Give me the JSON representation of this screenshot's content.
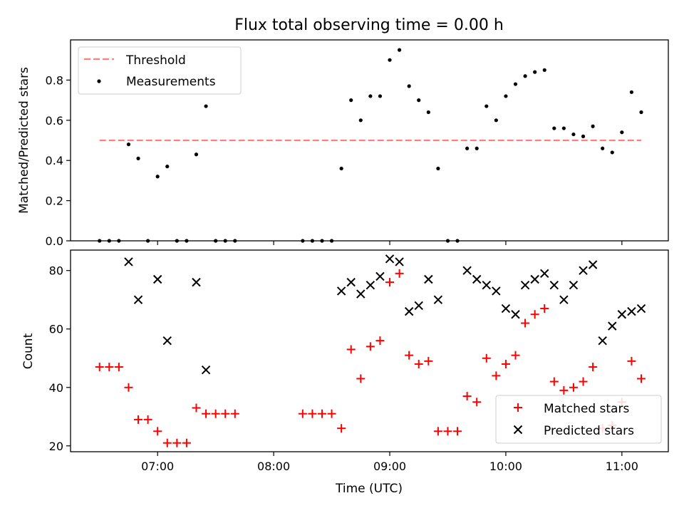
{
  "title": "Flux total observing time = 0.00 h",
  "chart_data": [
    {
      "type": "scatter",
      "panel": "top",
      "ylabel": "Matched/Predicted stars",
      "xlim": [
        "06:15",
        "11:24"
      ],
      "ylim": [
        0,
        1.0
      ],
      "yticks": [
        0.0,
        0.2,
        0.4,
        0.6,
        0.8
      ],
      "ytick_labels": [
        "0.0",
        "0.2",
        "0.4",
        "0.6",
        "0.8"
      ],
      "legend": {
        "location": "top-left",
        "entries": [
          "Threshold",
          "Measurements"
        ]
      },
      "threshold": {
        "name": "Threshold",
        "y": 0.5,
        "x_range": [
          "06:30",
          "11:10"
        ],
        "color": "#ff7f7f",
        "style": "dashed"
      },
      "series": [
        {
          "name": "Measurements",
          "color": "#000000",
          "points": [
            [
              "06:30",
              0.0
            ],
            [
              "06:35",
              0.0
            ],
            [
              "06:40",
              0.0
            ],
            [
              "06:45",
              0.48
            ],
            [
              "06:50",
              0.41
            ],
            [
              "06:55",
              0.0
            ],
            [
              "07:00",
              0.32
            ],
            [
              "07:05",
              0.37
            ],
            [
              "07:10",
              0.0
            ],
            [
              "07:15",
              0.0
            ],
            [
              "07:20",
              0.43
            ],
            [
              "07:25",
              0.67
            ],
            [
              "07:30",
              0.0
            ],
            [
              "07:35",
              0.0
            ],
            [
              "07:40",
              0.0
            ],
            [
              "08:15",
              0.0
            ],
            [
              "08:20",
              0.0
            ],
            [
              "08:25",
              0.0
            ],
            [
              "08:30",
              0.0
            ],
            [
              "08:35",
              0.36
            ],
            [
              "08:40",
              0.7
            ],
            [
              "08:45",
              0.6
            ],
            [
              "08:50",
              0.72
            ],
            [
              "08:55",
              0.72
            ],
            [
              "09:00",
              0.9
            ],
            [
              "09:05",
              0.95
            ],
            [
              "09:10",
              0.77
            ],
            [
              "09:15",
              0.7
            ],
            [
              "09:20",
              0.64
            ],
            [
              "09:25",
              0.36
            ],
            [
              "09:30",
              0.0
            ],
            [
              "09:35",
              0.0
            ],
            [
              "09:40",
              0.46
            ],
            [
              "09:45",
              0.46
            ],
            [
              "09:50",
              0.67
            ],
            [
              "09:55",
              0.6
            ],
            [
              "10:00",
              0.72
            ],
            [
              "10:05",
              0.78
            ],
            [
              "10:10",
              0.82
            ],
            [
              "10:15",
              0.84
            ],
            [
              "10:20",
              0.85
            ],
            [
              "10:25",
              0.56
            ],
            [
              "10:30",
              0.56
            ],
            [
              "10:35",
              0.53
            ],
            [
              "10:40",
              0.52
            ],
            [
              "10:45",
              0.57
            ],
            [
              "10:50",
              0.46
            ],
            [
              "10:55",
              0.44
            ],
            [
              "11:00",
              0.54
            ],
            [
              "11:05",
              0.74
            ],
            [
              "11:10",
              0.64
            ]
          ]
        }
      ]
    },
    {
      "type": "scatter",
      "panel": "bottom",
      "xlabel": "Time (UTC)",
      "ylabel": "Count",
      "xlim": [
        "06:15",
        "11:24"
      ],
      "ylim": [
        18,
        87
      ],
      "xticks": [
        "07:00",
        "08:00",
        "09:00",
        "10:00",
        "11:00"
      ],
      "yticks": [
        20,
        40,
        60,
        80
      ],
      "ytick_labels": [
        "20",
        "40",
        "60",
        "80"
      ],
      "legend": {
        "location": "bottom-right",
        "entries": [
          "Matched stars",
          "Predicted stars"
        ]
      },
      "series": [
        {
          "name": "Matched stars",
          "marker": "plus",
          "color": "#ff0000",
          "points": [
            [
              "06:30",
              47
            ],
            [
              "06:35",
              47
            ],
            [
              "06:40",
              47
            ],
            [
              "06:45",
              40
            ],
            [
              "06:50",
              29
            ],
            [
              "06:55",
              29
            ],
            [
              "07:00",
              25
            ],
            [
              "07:05",
              21
            ],
            [
              "07:10",
              21
            ],
            [
              "07:15",
              21
            ],
            [
              "07:20",
              33
            ],
            [
              "07:25",
              31
            ],
            [
              "07:30",
              31
            ],
            [
              "07:35",
              31
            ],
            [
              "07:40",
              31
            ],
            [
              "08:15",
              31
            ],
            [
              "08:20",
              31
            ],
            [
              "08:25",
              31
            ],
            [
              "08:30",
              31
            ],
            [
              "08:35",
              26
            ],
            [
              "08:40",
              53
            ],
            [
              "08:45",
              43
            ],
            [
              "08:50",
              54
            ],
            [
              "08:55",
              56
            ],
            [
              "09:00",
              76
            ],
            [
              "09:05",
              79
            ],
            [
              "09:10",
              51
            ],
            [
              "09:15",
              48
            ],
            [
              "09:20",
              49
            ],
            [
              "09:25",
              25
            ],
            [
              "09:30",
              25
            ],
            [
              "09:35",
              25
            ],
            [
              "09:40",
              37
            ],
            [
              "09:45",
              35
            ],
            [
              "09:50",
              50
            ],
            [
              "09:55",
              44
            ],
            [
              "10:00",
              48
            ],
            [
              "10:05",
              51
            ],
            [
              "10:10",
              62
            ],
            [
              "10:15",
              65
            ],
            [
              "10:20",
              67
            ],
            [
              "10:25",
              42
            ],
            [
              "10:30",
              39
            ],
            [
              "10:35",
              40
            ],
            [
              "10:40",
              42
            ],
            [
              "10:45",
              47
            ],
            [
              "10:50",
              26
            ],
            [
              "10:55",
              27
            ],
            [
              "11:00",
              35
            ],
            [
              "11:05",
              49
            ],
            [
              "11:10",
              43
            ]
          ]
        },
        {
          "name": "Predicted stars",
          "marker": "x",
          "color": "#000000",
          "points": [
            [
              "06:45",
              83
            ],
            [
              "06:50",
              70
            ],
            [
              "07:00",
              77
            ],
            [
              "07:05",
              56
            ],
            [
              "07:20",
              76
            ],
            [
              "07:25",
              46
            ],
            [
              "08:35",
              73
            ],
            [
              "08:40",
              76
            ],
            [
              "08:45",
              72
            ],
            [
              "08:50",
              75
            ],
            [
              "08:55",
              78
            ],
            [
              "09:00",
              84
            ],
            [
              "09:05",
              83
            ],
            [
              "09:10",
              66
            ],
            [
              "09:15",
              68
            ],
            [
              "09:20",
              77
            ],
            [
              "09:25",
              70
            ],
            [
              "09:40",
              80
            ],
            [
              "09:45",
              77
            ],
            [
              "09:50",
              75
            ],
            [
              "09:55",
              73
            ],
            [
              "10:00",
              67
            ],
            [
              "10:05",
              65
            ],
            [
              "10:10",
              75
            ],
            [
              "10:15",
              77
            ],
            [
              "10:20",
              79
            ],
            [
              "10:25",
              75
            ],
            [
              "10:30",
              70
            ],
            [
              "10:35",
              75
            ],
            [
              "10:40",
              80
            ],
            [
              "10:45",
              82
            ],
            [
              "10:50",
              56
            ],
            [
              "10:55",
              61
            ],
            [
              "11:00",
              65
            ],
            [
              "11:05",
              66
            ],
            [
              "11:10",
              67
            ]
          ]
        }
      ]
    }
  ]
}
